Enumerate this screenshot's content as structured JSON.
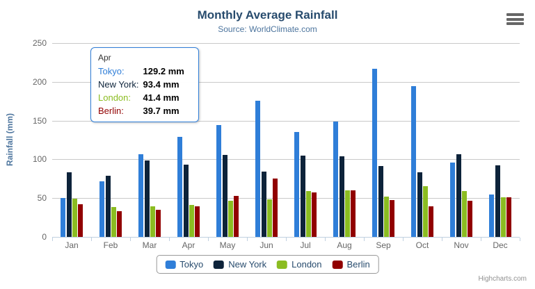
{
  "header": {
    "title": "Monthly Average Rainfall",
    "subtitle": "Source: WorldClimate.com"
  },
  "chart_data": {
    "type": "bar",
    "title": "Monthly Average Rainfall",
    "subtitle": "Source: WorldClimate.com",
    "categories": [
      "Jan",
      "Feb",
      "Mar",
      "Apr",
      "May",
      "Jun",
      "Jul",
      "Aug",
      "Sep",
      "Oct",
      "Nov",
      "Dec"
    ],
    "series": [
      {
        "name": "Tokyo",
        "color": "#2f7ed8",
        "values": [
          49.9,
          71.5,
          106.4,
          129.2,
          144.0,
          176.0,
          135.6,
          148.5,
          216.4,
          194.1,
          95.6,
          54.4
        ]
      },
      {
        "name": "New York",
        "color": "#0d233a",
        "values": [
          83.6,
          78.8,
          98.5,
          93.4,
          106.0,
          84.5,
          105.0,
          104.3,
          91.2,
          83.5,
          106.6,
          92.3
        ]
      },
      {
        "name": "London",
        "color": "#8bbc21",
        "values": [
          48.9,
          38.8,
          39.3,
          41.4,
          47.0,
          48.3,
          59.0,
          59.6,
          52.4,
          65.2,
          59.3,
          51.2
        ]
      },
      {
        "name": "Berlin",
        "color": "#910000",
        "values": [
          42.4,
          33.2,
          34.5,
          39.7,
          52.6,
          75.5,
          57.4,
          60.4,
          47.6,
          39.1,
          46.8,
          51.1
        ]
      }
    ],
    "xlabel": "",
    "ylabel": "Rainfall (mm)",
    "ylim": [
      0,
      250
    ],
    "yticks": [
      0,
      50,
      100,
      150,
      200,
      250
    ],
    "grid": true,
    "legend_position": "bottom"
  },
  "tooltip": {
    "header": "Apr",
    "border_color": "#2f7ed8",
    "rows": [
      {
        "label": "Tokyo:",
        "value": "129.2 mm",
        "color": "#2f7ed8"
      },
      {
        "label": "New York:",
        "value": "93.4 mm",
        "color": "#0d233a"
      },
      {
        "label": "London:",
        "value": "41.4 mm",
        "color": "#8bbc21"
      },
      {
        "label": "Berlin:",
        "value": "39.7 mm",
        "color": "#910000"
      }
    ]
  },
  "credits": {
    "text": "Highcharts.com"
  },
  "icons": {
    "export_menu": "hamburger-icon"
  },
  "colors": {
    "title": "#274b6d",
    "subtitle": "#4d759e",
    "axis_labels": "#666666",
    "gridline": "#c9c9c9",
    "axis_line": "#c0d0e0",
    "legend_text": "#274b6d",
    "credits_text": "#909090"
  }
}
